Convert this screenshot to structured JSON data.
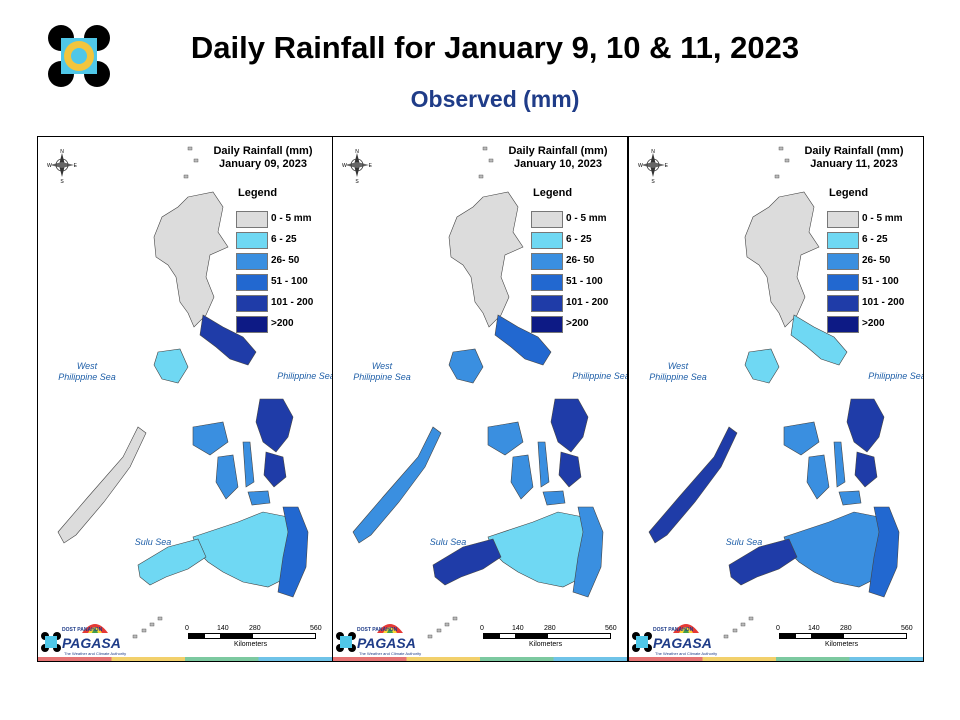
{
  "header": {
    "title": "Daily Rainfall for January 9, 10 & 11, 2023",
    "subtitle": "Observed (mm)"
  },
  "colors": {
    "land_base": "#dcdcdc",
    "r6_25": "#6fd8f3",
    "r26_50": "#3a8fe0",
    "r51_100": "#2268d0",
    "r101_200": "#1f3ca8",
    "r200": "#0d1a85",
    "sea_label": "#1f5fa8",
    "title_blue": "#1f3c88"
  },
  "legend": {
    "title": "Legend",
    "items": [
      {
        "label": "0 - 5 mm",
        "color": "#dcdcdc"
      },
      {
        "label": "6 - 25",
        "color": "#6fd8f3"
      },
      {
        "label": "26- 50",
        "color": "#3a8fe0"
      },
      {
        "label": "51 - 100",
        "color": "#2268d0"
      },
      {
        "label": "101 - 200",
        "color": "#1f3ca8"
      },
      {
        "label": ">200",
        "color": "#0d1a85"
      }
    ]
  },
  "seas": {
    "west": "West\nPhilippine Sea",
    "philippine": "Philippine Sea",
    "sulu": "Sulu Sea"
  },
  "scale": {
    "ticks": [
      "0",
      "140",
      "280",
      "560"
    ],
    "unit": "Kilometers"
  },
  "compass": {
    "n": "N",
    "e": "E",
    "s": "S",
    "w": "W"
  },
  "brand": {
    "name": "PAGASA",
    "prefix": "DOST PANAHON",
    "tagline": "The Weather and Climate Authority"
  },
  "panels": [
    {
      "heading_line1": "Daily Rainfall (mm)",
      "heading_line2": "January 09, 2023",
      "rain": {
        "bicol": "r101_200",
        "samar": "r101_200",
        "mindanao_east": "r51_100",
        "mindanao_center": "r6_25",
        "mindanao_west": "r6_25",
        "visayas": "r26_50",
        "mindoro": "r6_25",
        "palawan": "land_base"
      }
    },
    {
      "heading_line1": "Daily Rainfall (mm)",
      "heading_line2": "January 10, 2023",
      "rain": {
        "bicol": "r51_100",
        "samar": "r101_200",
        "mindanao_east": "r26_50",
        "mindanao_center": "r6_25",
        "mindanao_west": "r101_200",
        "visayas": "r26_50",
        "mindoro": "r26_50",
        "palawan": "r26_50"
      }
    },
    {
      "heading_line1": "Daily Rainfall (mm)",
      "heading_line2": "January 11, 2023",
      "rain": {
        "bicol": "r6_25",
        "samar": "r101_200",
        "mindanao_east": "r51_100",
        "mindanao_center": "r26_50",
        "mindanao_west": "r101_200",
        "visayas": "r26_50",
        "mindoro": "r6_25",
        "palawan": "r101_200"
      }
    }
  ]
}
